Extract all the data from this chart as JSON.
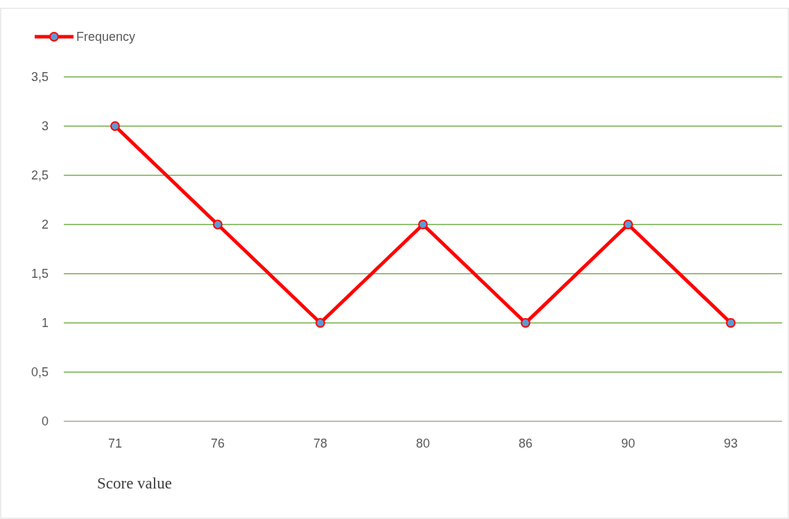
{
  "chart_data": {
    "type": "line",
    "xlabel": "Score value",
    "categories": [
      "71",
      "76",
      "78",
      "80",
      "86",
      "90",
      "93"
    ],
    "series": [
      {
        "name": "Frequency",
        "color": "#ff0000",
        "values": [
          3,
          2,
          1,
          2,
          1,
          2,
          1
        ]
      }
    ],
    "ylim": [
      0,
      3.5
    ],
    "yticks": [
      0,
      {
        "value": 0.5,
        "label": "0,5"
      },
      1,
      {
        "value": 1.5,
        "label": "1,5"
      },
      2,
      {
        "value": 2.5,
        "label": "2,5"
      },
      3,
      {
        "value": 3.5,
        "label": "3,5"
      }
    ],
    "grid": "y",
    "legend": "top left",
    "marker": "circle",
    "line_style": "solid"
  }
}
